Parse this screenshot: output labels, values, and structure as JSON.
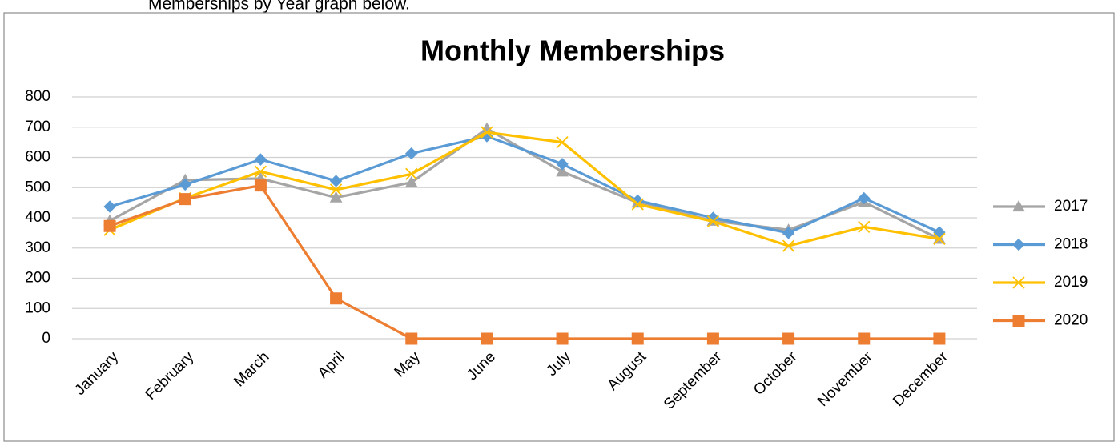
{
  "caption": "Memberships by Year graph below.",
  "chart_data": {
    "type": "line",
    "title": "Monthly Memberships",
    "categories": [
      "January",
      "February",
      "March",
      "April",
      "May",
      "June",
      "July",
      "August",
      "September",
      "October",
      "November",
      "December"
    ],
    "series": [
      {
        "name": "2017",
        "color": "#a5a5a5",
        "marker": "triangle",
        "values": [
          390,
          525,
          530,
          467,
          517,
          695,
          553,
          450,
          390,
          360,
          452,
          330
        ]
      },
      {
        "name": "2018",
        "color": "#5b9bd5",
        "marker": "diamond",
        "values": [
          437,
          510,
          593,
          522,
          613,
          670,
          578,
          457,
          400,
          350,
          465,
          352
        ]
      },
      {
        "name": "2019",
        "color": "#ffc000",
        "marker": "x",
        "values": [
          360,
          465,
          553,
          493,
          545,
          683,
          650,
          445,
          388,
          307,
          370,
          330
        ]
      },
      {
        "name": "2020",
        "color": "#ed7d31",
        "marker": "square",
        "values": [
          373,
          462,
          507,
          133,
          0,
          0,
          0,
          0,
          0,
          0,
          0,
          0
        ]
      }
    ],
    "ylim": [
      0,
      800
    ],
    "yticks": [
      0,
      100,
      200,
      300,
      400,
      500,
      600,
      700,
      800
    ],
    "grid": true,
    "legend": "right"
  }
}
